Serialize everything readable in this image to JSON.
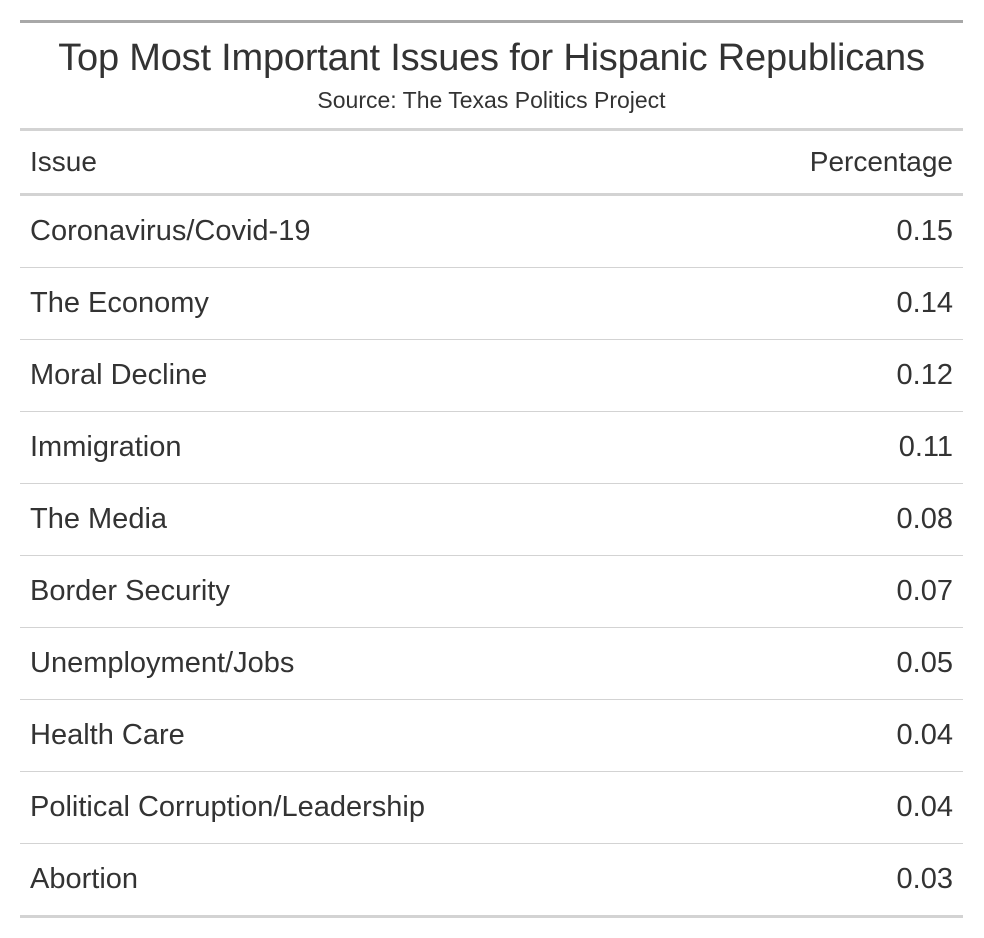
{
  "chart_data": {
    "type": "table",
    "title": "Top Most Important Issues for Hispanic Republicans",
    "subtitle": "Source: The Texas Politics Project",
    "columns": [
      "Issue",
      "Percentage"
    ],
    "rows": [
      {
        "issue": "Coronavirus/Covid-19",
        "percentage": "0.15"
      },
      {
        "issue": "The Economy",
        "percentage": "0.14"
      },
      {
        "issue": "Moral Decline",
        "percentage": "0.12"
      },
      {
        "issue": "Immigration",
        "percentage": "0.11"
      },
      {
        "issue": "The Media",
        "percentage": "0.08"
      },
      {
        "issue": "Border Security",
        "percentage": "0.07"
      },
      {
        "issue": "Unemployment/Jobs",
        "percentage": "0.05"
      },
      {
        "issue": "Health Care",
        "percentage": "0.04"
      },
      {
        "issue": "Political Corruption/Leadership",
        "percentage": "0.04"
      },
      {
        "issue": "Abortion",
        "percentage": "0.03"
      }
    ]
  },
  "colors": {
    "text": "#333333",
    "top_border": "#a8a8a8",
    "rule": "#d3d3d3"
  }
}
